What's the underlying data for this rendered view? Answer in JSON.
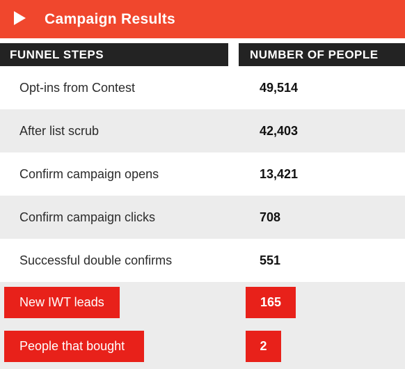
{
  "header": {
    "title": "Campaign Results",
    "icon": "play-icon",
    "color": "#f0472d"
  },
  "table": {
    "columns": [
      "FUNNEL STEPS",
      "NUMBER OF PEOPLE"
    ],
    "rows": [
      {
        "step": "Opt-ins from Contest",
        "people": "49,514"
      },
      {
        "step": "After list scrub",
        "people": "42,403"
      },
      {
        "step": "Confirm campaign opens",
        "people": "13,421"
      },
      {
        "step": "Confirm campaign clicks",
        "people": "708"
      },
      {
        "step": "Successful double confirms",
        "people": "551"
      },
      {
        "step": "New IWT leads",
        "people": "165"
      },
      {
        "step": "People that bought",
        "people": "2"
      }
    ]
  },
  "colors": {
    "header_dark": "#232323",
    "highlight_red": "#e8211a",
    "row_shade": "#ececec"
  }
}
